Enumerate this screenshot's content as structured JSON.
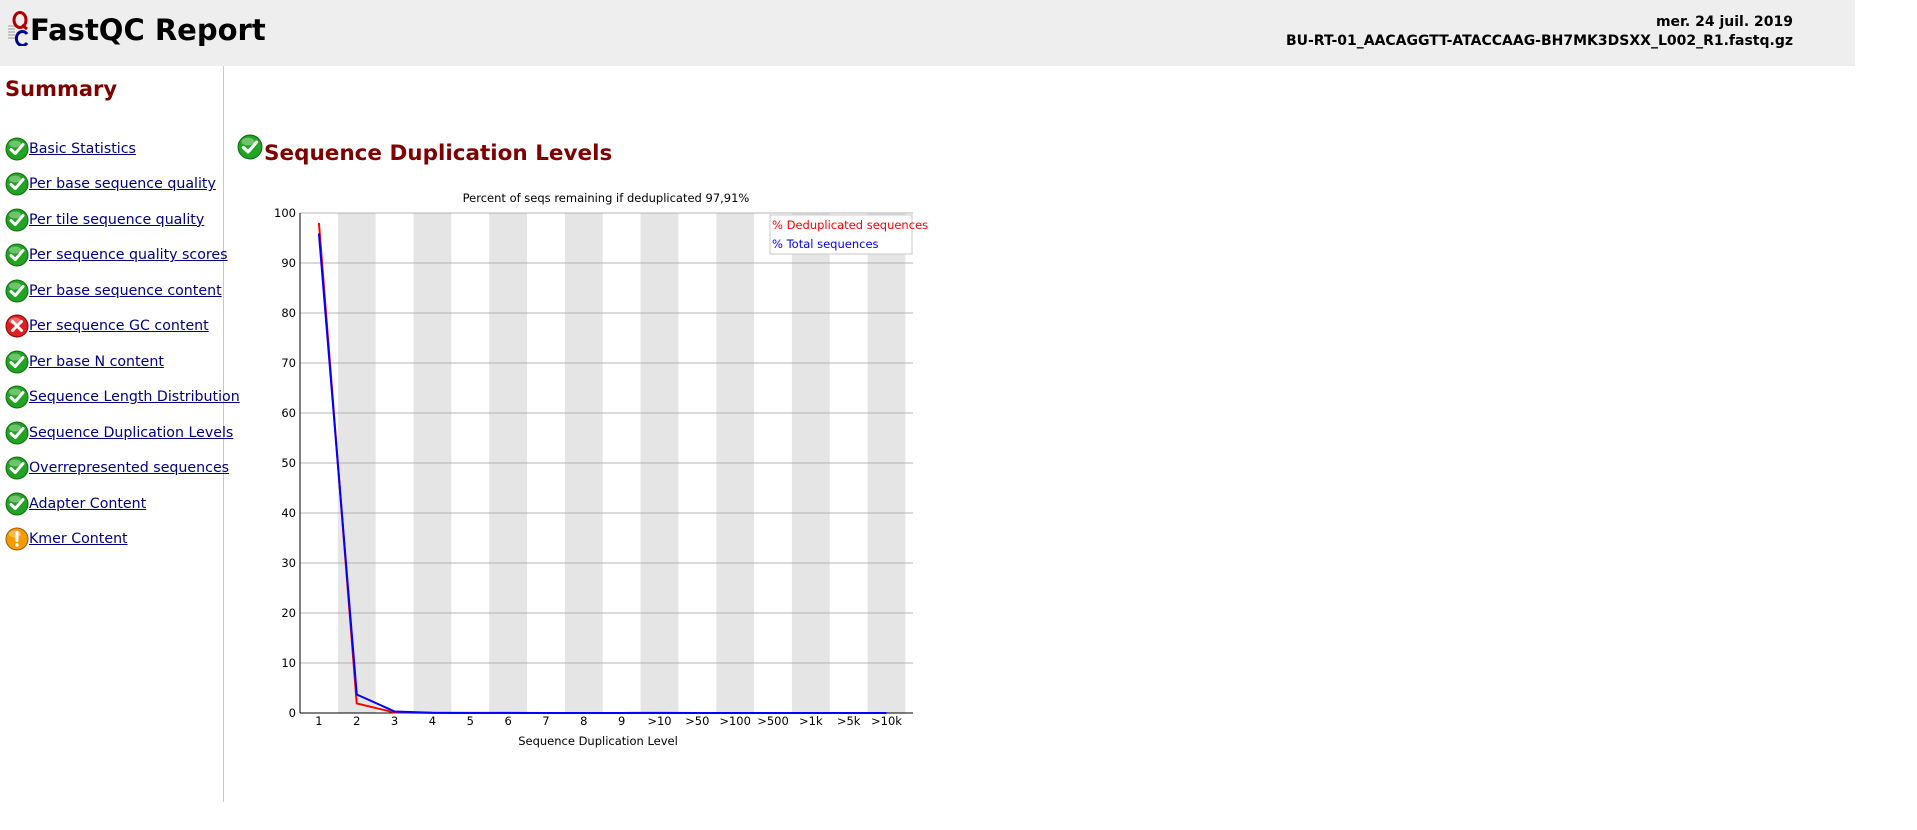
{
  "header": {
    "title": "FastQC Report",
    "date": "mer. 24 juil. 2019",
    "filename": "BU-RT-01_AACAGGTT-ATACCAAG-BH7MK3DSXX_L002_R1.fastq.gz"
  },
  "sidebar": {
    "title": "Summary",
    "items": [
      {
        "label": "Basic Statistics",
        "status": "pass"
      },
      {
        "label": "Per base sequence quality",
        "status": "pass"
      },
      {
        "label": "Per tile sequence quality",
        "status": "pass"
      },
      {
        "label": "Per sequence quality scores",
        "status": "pass"
      },
      {
        "label": "Per base sequence content",
        "status": "pass"
      },
      {
        "label": "Per sequence GC content",
        "status": "fail"
      },
      {
        "label": "Per base N content",
        "status": "pass"
      },
      {
        "label": "Sequence Length Distribution",
        "status": "pass"
      },
      {
        "label": "Sequence Duplication Levels",
        "status": "pass"
      },
      {
        "label": "Overrepresented sequences",
        "status": "pass"
      },
      {
        "label": "Adapter Content",
        "status": "pass"
      },
      {
        "label": "Kmer Content",
        "status": "warn"
      }
    ]
  },
  "main": {
    "title": "Sequence Duplication Levels",
    "status": "pass"
  },
  "colors": {
    "heading": "#800000",
    "link": "#000080",
    "pass": "#22a322",
    "fail": "#e02020",
    "warn": "#f59a00",
    "dedup_series": "#ff0000",
    "total_series": "#0000ff",
    "band": "#e5e5e5"
  },
  "chart_data": {
    "type": "line",
    "title": "Percent of seqs remaining if deduplicated 97,91%",
    "xlabel": "Sequence Duplication Level",
    "ylabel": "",
    "ylim": [
      0,
      100
    ],
    "yticks": [
      0,
      10,
      20,
      30,
      40,
      50,
      60,
      70,
      80,
      90,
      100
    ],
    "categories": [
      "1",
      "2",
      "3",
      "4",
      "5",
      "6",
      "7",
      "8",
      "9",
      ">10",
      ">50",
      ">100",
      ">500",
      ">1k",
      ">5k",
      ">10k"
    ],
    "grid": true,
    "legend_position": "top-right",
    "series": [
      {
        "name": "% Deduplicated sequences",
        "color": "#ff0000",
        "values": [
          98.0,
          1.9,
          0.1,
          0.02,
          0.01,
          0.01,
          0.01,
          0.0,
          0.0,
          0.01,
          0.0,
          0.0,
          0.0,
          0.0,
          0.0,
          0.0
        ]
      },
      {
        "name": "% Total sequences",
        "color": "#0000ff",
        "values": [
          95.9,
          3.7,
          0.3,
          0.05,
          0.02,
          0.02,
          0.01,
          0.01,
          0.01,
          0.02,
          0.0,
          0.0,
          0.0,
          0.0,
          0.0,
          0.0
        ]
      }
    ]
  }
}
